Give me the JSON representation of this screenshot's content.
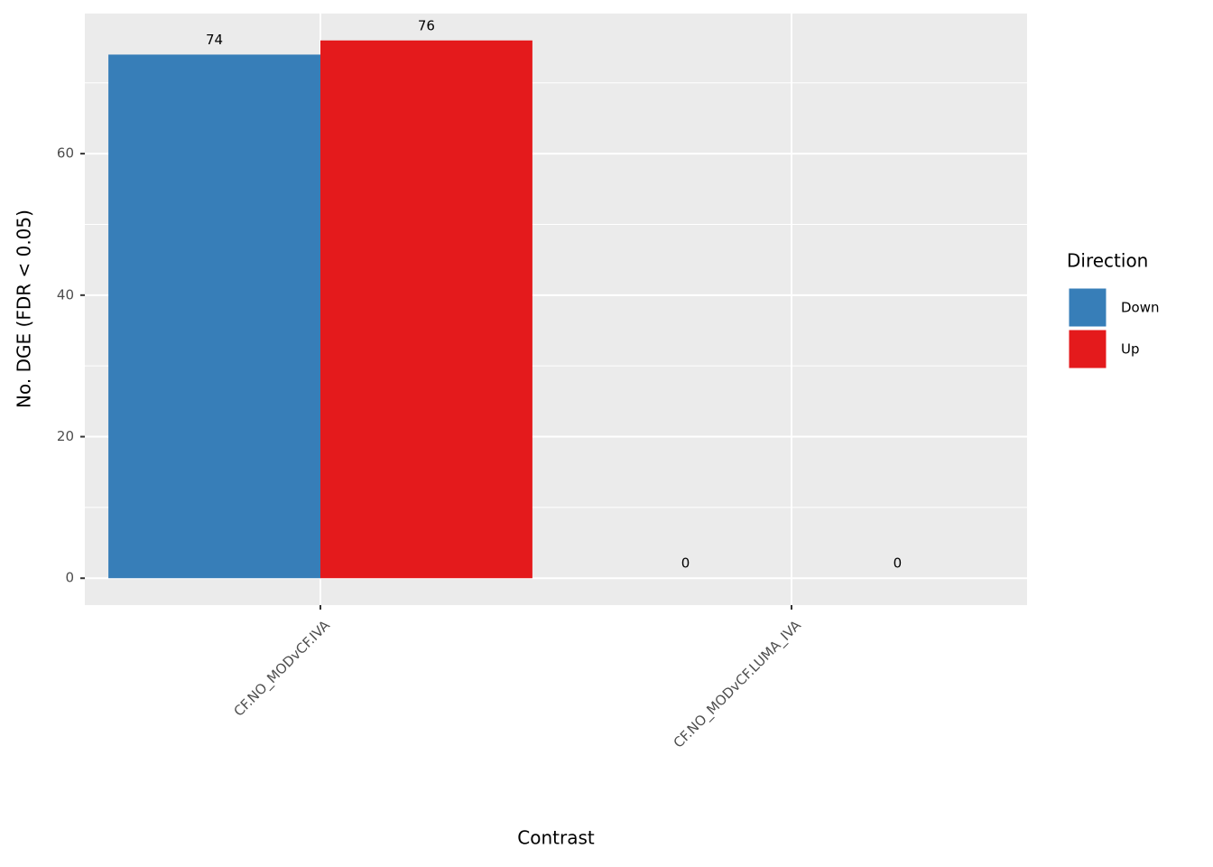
{
  "chart_data": {
    "type": "bar",
    "x_label": "Contrast",
    "y_label": "No. DGE (FDR < 0.05)",
    "categories": [
      "CF.NO_MODvCF.IVA",
      "CF.NO_MODvCF.LUMA_IVA"
    ],
    "series": [
      {
        "name": "Down",
        "color": "#377eb8",
        "values": [
          74,
          0
        ]
      },
      {
        "name": "Up",
        "color": "#e41a1c",
        "values": [
          76,
          0
        ]
      }
    ],
    "ylim": [
      -3.8,
      79.8
    ],
    "yticks": [
      0,
      20,
      40,
      60
    ],
    "yminorticks": [
      10,
      30,
      50,
      70
    ],
    "grid": true,
    "legend_title": "Direction",
    "legend": "right"
  }
}
